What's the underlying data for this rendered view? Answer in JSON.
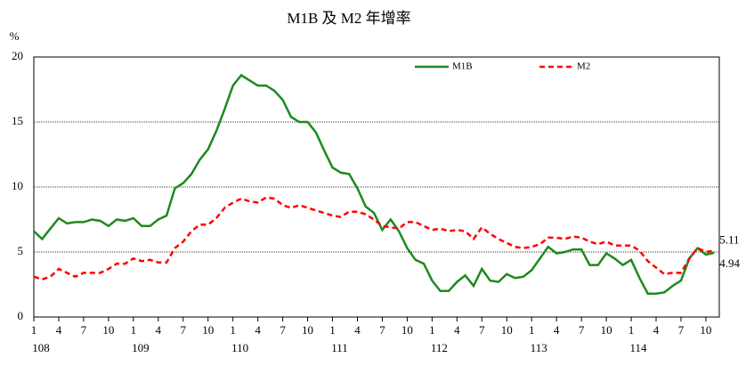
{
  "chart_data": {
    "type": "line",
    "title": "M1B 及 M2 年增率",
    "y_unit": "%",
    "categories": [
      "1",
      null,
      null,
      "4",
      null,
      null,
      "7",
      null,
      null,
      "10",
      null,
      null,
      "1",
      null,
      null,
      "4",
      null,
      null,
      "7",
      null,
      null,
      "10",
      null,
      null,
      "1",
      null,
      null,
      "4",
      null,
      null,
      "7",
      null,
      null,
      "10",
      null,
      null,
      "1",
      null,
      null,
      "4",
      null,
      null,
      "7",
      null,
      null,
      "10",
      null,
      null,
      "1",
      null,
      null,
      "4",
      null,
      null,
      "7",
      null,
      null,
      "10",
      null,
      null,
      "1",
      null,
      null,
      "4",
      null,
      null,
      "7",
      null,
      null,
      "10",
      null,
      null,
      "1",
      null,
      null,
      "4",
      null,
      null,
      "7",
      null,
      null,
      "10",
      null
    ],
    "year_labels": [
      "108",
      "109",
      "110",
      "111",
      "112",
      "113",
      "114"
    ],
    "series": [
      {
        "name": "M1B",
        "color": "#1e8a1e",
        "dash": false,
        "values": [
          6.6,
          6.0,
          6.8,
          7.6,
          7.2,
          7.3,
          7.3,
          7.5,
          7.4,
          7.0,
          7.5,
          7.4,
          7.6,
          7.0,
          7.0,
          7.5,
          7.8,
          9.9,
          10.3,
          11.0,
          12.1,
          12.9,
          14.3,
          16.0,
          17.8,
          18.6,
          18.2,
          17.8,
          17.8,
          17.4,
          16.7,
          15.4,
          15.0,
          15.0,
          14.2,
          12.8,
          11.5,
          11.1,
          11.0,
          9.9,
          8.5,
          8.0,
          6.7,
          7.5,
          6.6,
          5.3,
          4.4,
          4.1,
          2.8,
          2.0,
          2.0,
          2.7,
          3.2,
          2.4,
          3.7,
          2.8,
          2.7,
          3.3,
          3.0,
          3.1,
          3.6,
          4.5,
          5.4,
          4.9,
          5.0,
          5.2,
          5.2,
          4.0,
          4.0,
          4.9,
          4.5,
          4.0,
          4.4,
          3.0,
          1.8,
          1.8,
          1.9,
          2.4,
          2.8,
          4.5,
          5.3,
          4.8,
          4.94
        ]
      },
      {
        "name": "M2",
        "color": "#ff0000",
        "dash": true,
        "values": [
          3.1,
          2.9,
          3.1,
          3.7,
          3.4,
          3.1,
          3.4,
          3.4,
          3.4,
          3.7,
          4.1,
          4.1,
          4.5,
          4.3,
          4.4,
          4.2,
          4.2,
          5.3,
          5.8,
          6.6,
          7.1,
          7.1,
          7.6,
          8.4,
          8.8,
          9.1,
          8.9,
          8.8,
          9.2,
          9.1,
          8.6,
          8.4,
          8.6,
          8.4,
          8.2,
          8.0,
          7.8,
          7.7,
          8.1,
          8.1,
          7.9,
          7.5,
          7.0,
          6.9,
          6.8,
          7.3,
          7.3,
          7.0,
          6.7,
          6.8,
          6.6,
          6.7,
          6.6,
          6.0,
          6.9,
          6.4,
          6.0,
          5.7,
          5.4,
          5.3,
          5.4,
          5.6,
          6.1,
          6.1,
          6.0,
          6.2,
          6.1,
          5.8,
          5.6,
          5.8,
          5.5,
          5.5,
          5.5,
          5.1,
          4.3,
          3.8,
          3.3,
          3.4,
          3.4,
          4.5,
          5.3,
          5.0,
          5.11
        ]
      }
    ],
    "ylim": [
      0,
      20
    ],
    "yticks": [
      0,
      5,
      10,
      15,
      20
    ],
    "grid": true,
    "legend": "top"
  }
}
